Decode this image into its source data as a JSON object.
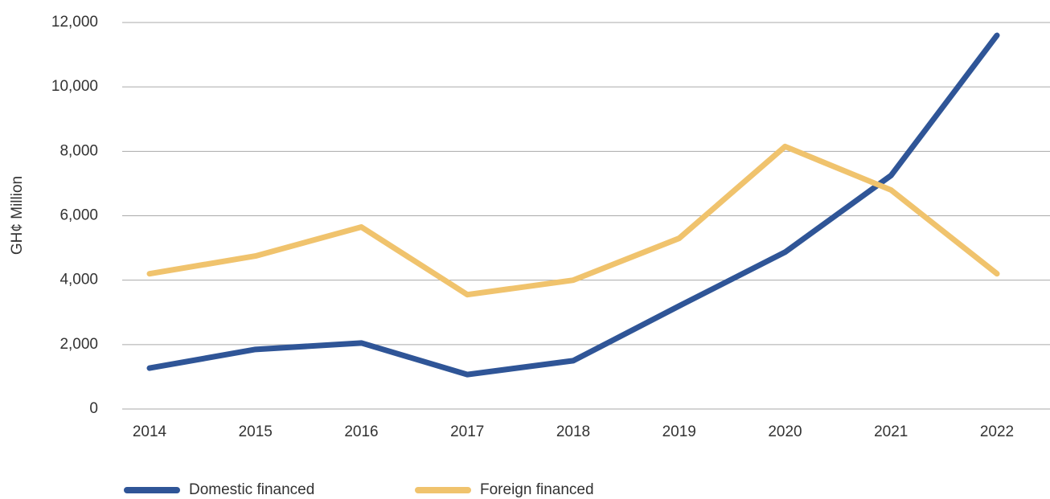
{
  "chart_data": {
    "type": "line",
    "ylabel": "GH¢ Million",
    "categories": [
      "2014",
      "2015",
      "2016",
      "2017",
      "2018",
      "2019",
      "2020",
      "2021",
      "2022"
    ],
    "series": [
      {
        "name": "Domestic financed",
        "color": "#2f5597",
        "values": [
          1270,
          1850,
          2050,
          1070,
          1500,
          3200,
          4870,
          7250,
          11600
        ]
      },
      {
        "name": "Foreign financed",
        "color": "#f0c36d",
        "values": [
          4200,
          4750,
          5650,
          3550,
          4000,
          5300,
          8150,
          6800,
          4200
        ]
      }
    ],
    "ylim": [
      0,
      12000
    ],
    "yticks": [
      0,
      {
        "value": 2000,
        "label": "2,000"
      },
      {
        "value": 4000,
        "label": "4,000"
      },
      {
        "value": 6000,
        "label": "6,000"
      },
      {
        "value": 8000,
        "label": "8,000"
      },
      {
        "value": 10000,
        "label": "10,000"
      },
      {
        "value": 12000,
        "label": "12,000"
      }
    ],
    "grid": true,
    "legend": "bottom"
  }
}
